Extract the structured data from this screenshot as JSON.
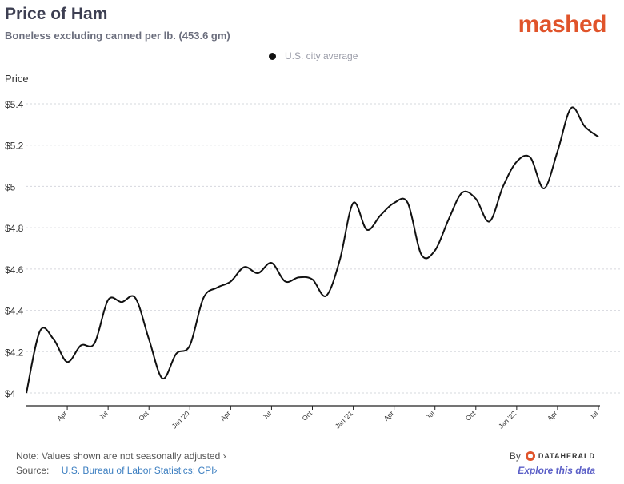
{
  "header": {
    "title": "Price of Ham",
    "subtitle": "Boneless excluding canned per lb. (453.6 gm)",
    "brand": "mashed"
  },
  "footer": {
    "note": "Note: Values shown are not seasonally adjusted",
    "note_arrow": "›",
    "source_label": "Source:",
    "source_link": "U.S. Bureau of Labor Statistics: CPI",
    "source_arrow": "›",
    "by_label": "By",
    "by_brand": "DATAHERALD",
    "explore": "Explore this data"
  },
  "colors": {
    "line": "#111111",
    "brand": "#e0542b",
    "link": "#3d7fc1",
    "explore": "#5b5fc7",
    "grid": "#d6d8de"
  },
  "chart_data": {
    "type": "line",
    "ylabel": "Price",
    "xlabel": "",
    "ylim": [
      4.0,
      5.4
    ],
    "yticks": [
      4.0,
      4.2,
      4.4,
      4.6,
      4.8,
      5.0,
      5.2,
      5.4
    ],
    "ytick_labels": [
      "$4",
      "$4.2",
      "$4.4",
      "$4.6",
      "$4.8",
      "$5",
      "$5.2",
      "$5.4"
    ],
    "xlim": [
      "2019-01",
      "2022-07"
    ],
    "xticks": [
      "2019-04",
      "2019-07",
      "2019-10",
      "2020-01",
      "2020-04",
      "2020-07",
      "2020-10",
      "2021-01",
      "2021-04",
      "2021-07",
      "2021-10",
      "2022-01",
      "2022-04",
      "2022-07"
    ],
    "xtick_labels": [
      "Apr",
      "Jul",
      "Oct",
      "Jan '20",
      "Apr",
      "Jul",
      "Oct",
      "Jan '21",
      "Apr",
      "Jul",
      "Oct",
      "Jan '22",
      "Apr",
      "Jul"
    ],
    "grid": true,
    "legend_position": "top-center",
    "series": [
      {
        "name": "U.S. city average",
        "x": [
          "2019-01",
          "2019-02",
          "2019-03",
          "2019-04",
          "2019-05",
          "2019-06",
          "2019-07",
          "2019-08",
          "2019-09",
          "2019-10",
          "2019-11",
          "2019-12",
          "2020-01",
          "2020-02",
          "2020-03",
          "2020-04",
          "2020-05",
          "2020-06",
          "2020-07",
          "2020-08",
          "2020-09",
          "2020-10",
          "2020-11",
          "2020-12",
          "2021-01",
          "2021-02",
          "2021-03",
          "2021-04",
          "2021-05",
          "2021-06",
          "2021-07",
          "2021-08",
          "2021-09",
          "2021-10",
          "2021-11",
          "2021-12",
          "2022-01",
          "2022-02",
          "2022-03",
          "2022-04",
          "2022-05",
          "2022-06",
          "2022-07"
        ],
        "values": [
          4.0,
          4.3,
          4.26,
          4.15,
          4.23,
          4.24,
          4.45,
          4.44,
          4.46,
          4.26,
          4.07,
          4.19,
          4.23,
          4.46,
          4.51,
          4.54,
          4.61,
          4.58,
          4.63,
          4.54,
          4.56,
          4.55,
          4.47,
          4.64,
          4.92,
          4.79,
          4.86,
          4.92,
          4.92,
          4.67,
          4.69,
          4.84,
          4.97,
          4.94,
          4.83,
          5.0,
          5.12,
          5.14,
          4.99,
          5.17,
          5.38,
          5.29,
          5.24
        ]
      }
    ]
  }
}
